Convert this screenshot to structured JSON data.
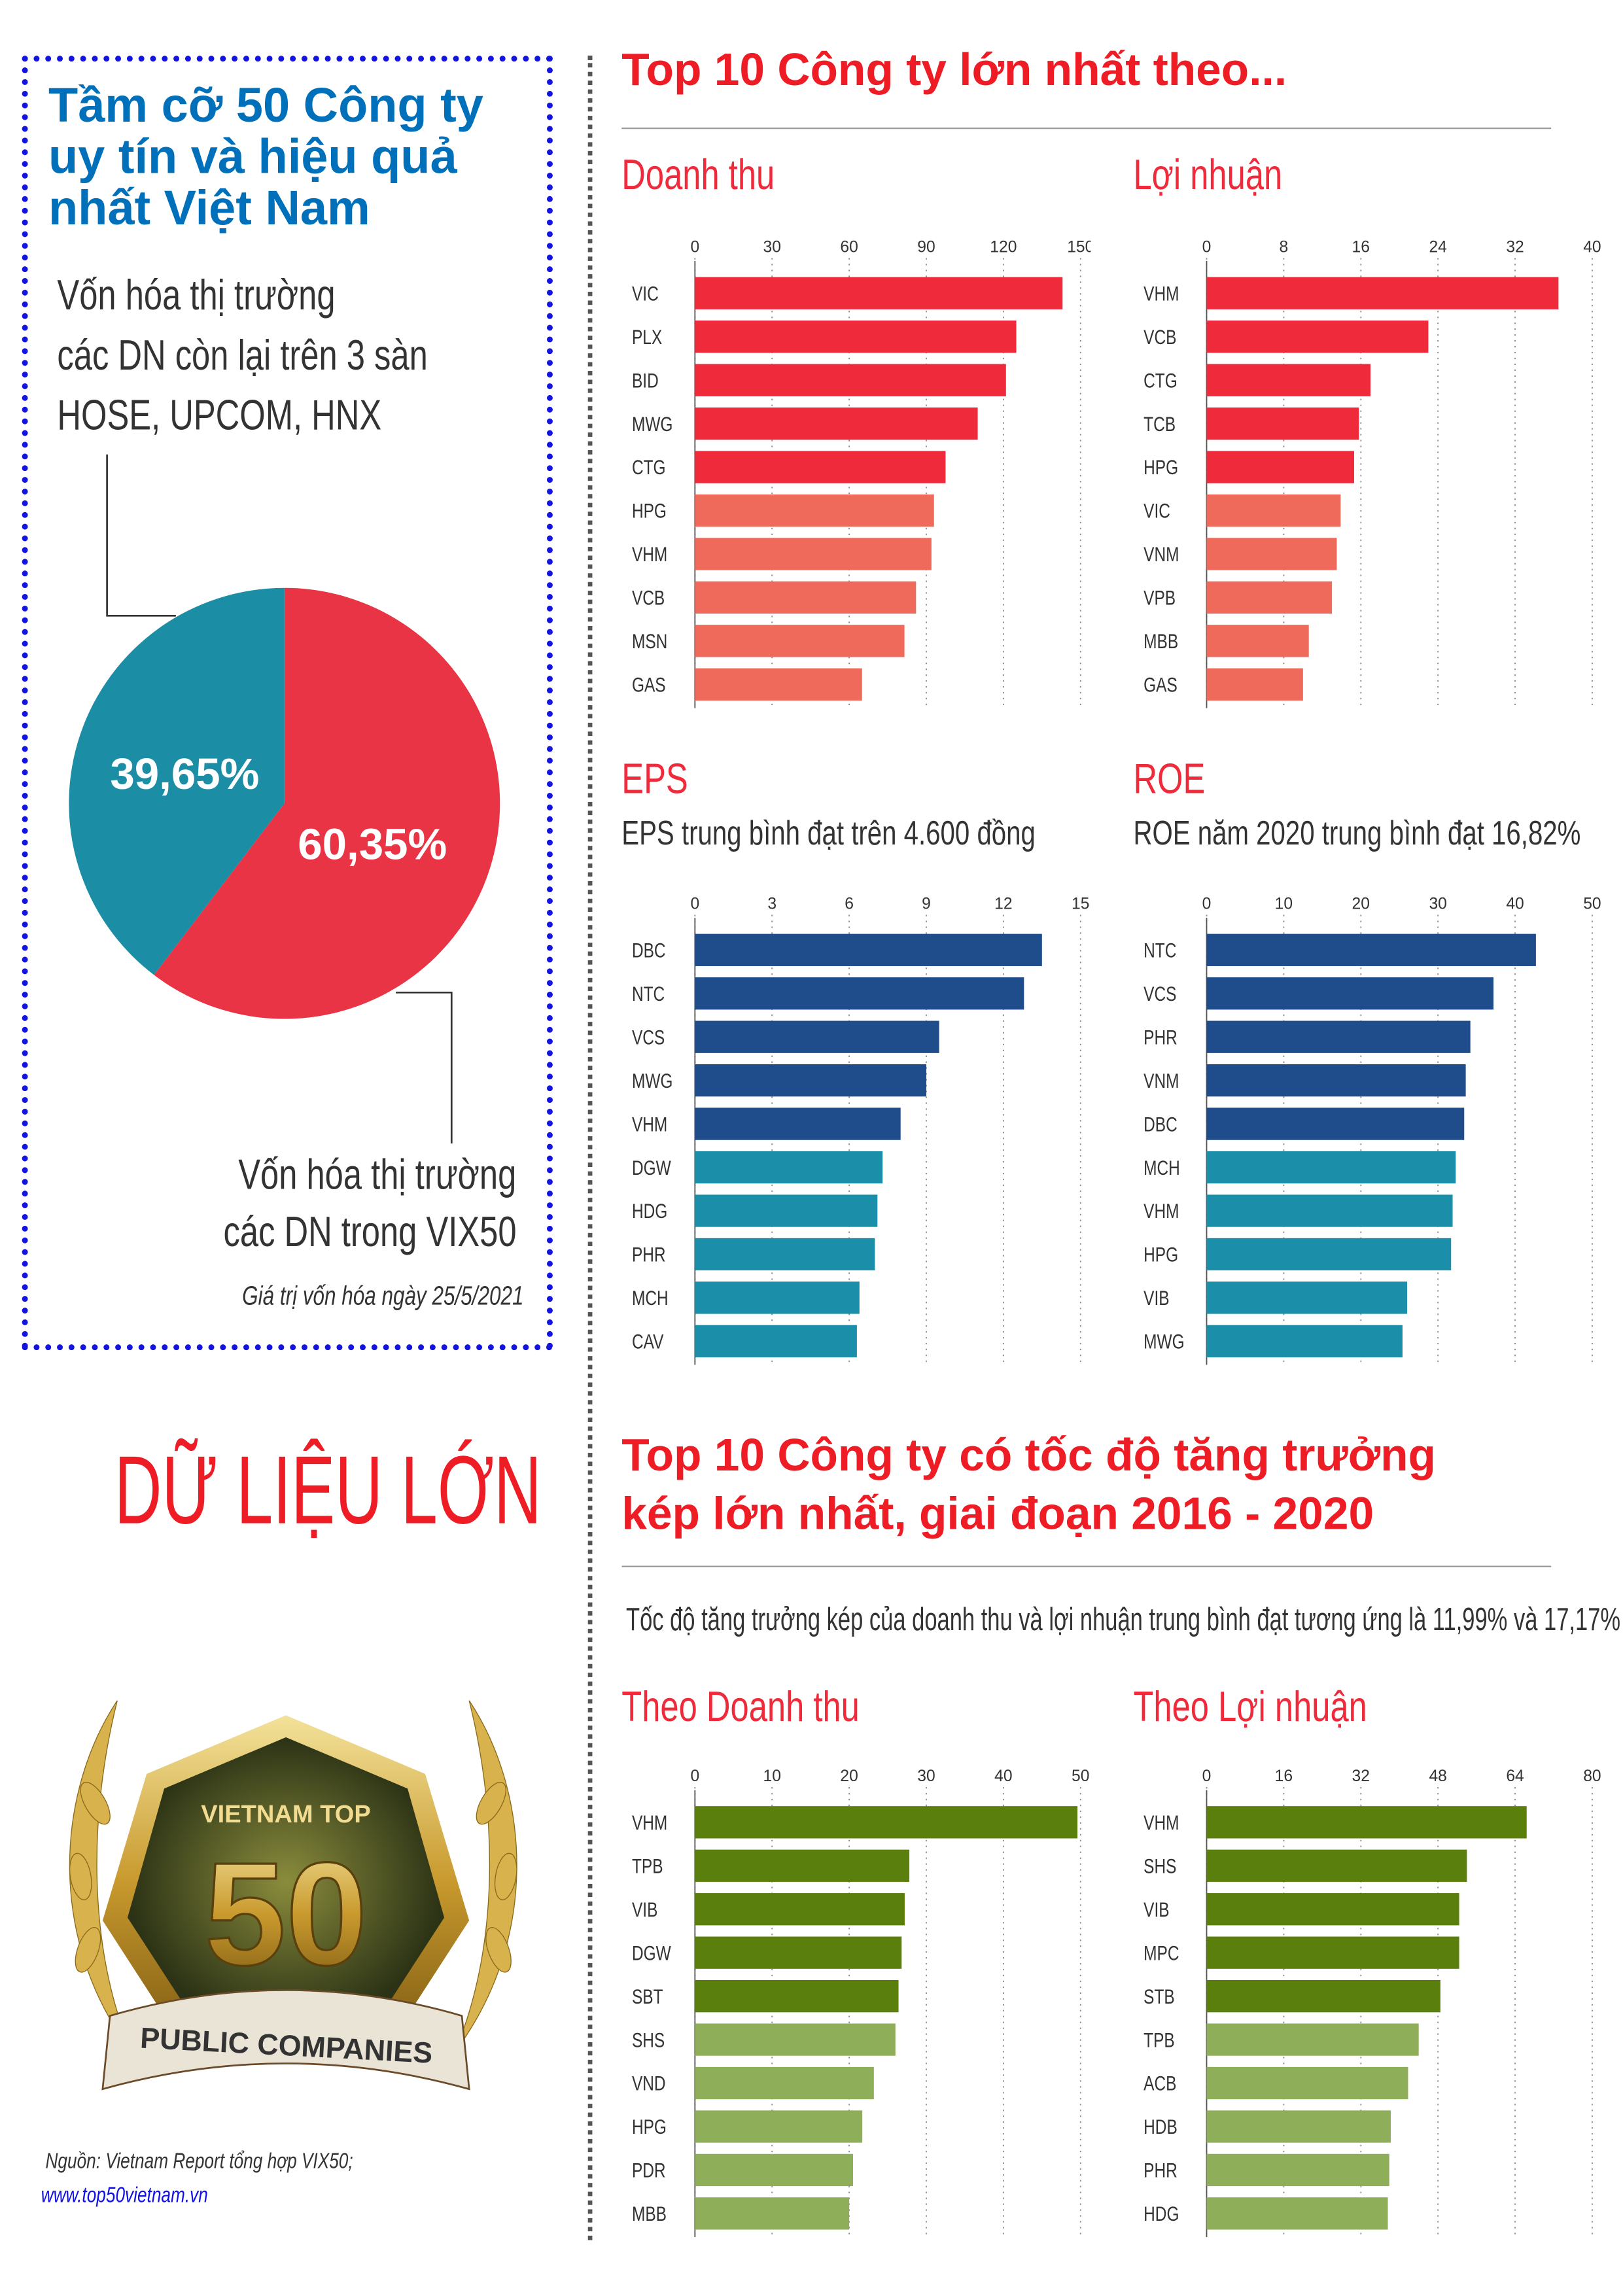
{
  "left": {
    "title_lines": [
      "Tầm cỡ 50 Công ty",
      "uy tín và hiệu quả",
      "nhất Việt Nam"
    ],
    "other_label_lines": [
      "Vốn hóa thị trường",
      "các DN còn lại trên 3 sàn",
      "HOSE, UPCOM, HNX"
    ],
    "vix_label_lines": [
      "Vốn hóa thị trường",
      "các DN trong VIX50"
    ],
    "date_note": "Giá trị vốn hóa ngày 25/5/2021",
    "big_data": "DỮ LIỆU LỚN",
    "logo": {
      "top": "VIETNAM TOP",
      "number": "50",
      "ribbon": "PUBLIC COMPANIES"
    },
    "source": "Nguồn: Vietnam Report tổng hợp VIX50;",
    "website": "www.top50vietnam.vn"
  },
  "pie": {
    "slices": [
      {
        "label": "60,35%",
        "value": 60.35,
        "color": "#e83444"
      },
      {
        "label": "39,65%",
        "value": 39.65,
        "color": "#1b8ea6"
      }
    ]
  },
  "section1": {
    "heading": "Top 10 Công ty lớn nhất theo..."
  },
  "section2": {
    "heading_lines": [
      "Top 10 Công ty có tốc độ tăng trưởng",
      "kép lớn nhất, giai đoạn 2016 - 2020"
    ],
    "note": "Tốc độ tăng trưởng kép của doanh thu và lợi nhuận trung bình đạt tương ứng là 11,99% và 17,17%"
  },
  "chart_data": [
    {
      "type": "bar",
      "title": "Doanh thu",
      "subtitle": "",
      "xlim": [
        0,
        150
      ],
      "ticks": [
        0,
        30,
        60,
        90,
        120,
        150
      ],
      "categories": [
        "VIC",
        "PLX",
        "BID",
        "MWG",
        "CTG",
        "HPG",
        "VHM",
        "VCB",
        "MSN",
        "GAS"
      ],
      "values": [
        143,
        125,
        121,
        110,
        97.5,
        93,
        92,
        86,
        81.5,
        65
      ],
      "colors": [
        "#ee2a3b",
        "#ef6a5a"
      ]
    },
    {
      "type": "bar",
      "title": "Lợi nhuận",
      "subtitle": "",
      "xlim": [
        0,
        40
      ],
      "ticks": [
        0,
        8,
        16,
        24,
        32,
        40
      ],
      "categories": [
        "VHM",
        "VCB",
        "CTG",
        "TCB",
        "HPG",
        "VIC",
        "VNM",
        "VPB",
        "MBB",
        "GAS"
      ],
      "values": [
        36.5,
        23,
        17,
        15.8,
        15.3,
        13.9,
        13.5,
        13,
        10.6,
        10
      ],
      "colors": [
        "#ee2a3b",
        "#ef6a5a"
      ]
    },
    {
      "type": "bar",
      "title": "EPS",
      "subtitle": "EPS trung bình đạt trên 4.600 đồng",
      "xlim": [
        0,
        15
      ],
      "ticks": [
        0,
        3,
        6,
        9,
        12,
        15
      ],
      "categories": [
        "DBC",
        "NTC",
        "VCS",
        "MWG",
        "VHM",
        "DGW",
        "HDG",
        "PHR",
        "MCH",
        "CAV"
      ],
      "values": [
        13.5,
        12.8,
        9.5,
        9,
        8,
        7.3,
        7.1,
        7,
        6.4,
        6.3
      ],
      "colors": [
        "#1f4c8a",
        "#1b8fa9"
      ]
    },
    {
      "type": "bar",
      "title": "ROE",
      "subtitle": "ROE năm 2020 trung bình đạt 16,82%",
      "xlim": [
        0,
        50
      ],
      "ticks": [
        0,
        10,
        20,
        30,
        40,
        50
      ],
      "categories": [
        "NTC",
        "VCS",
        "PHR",
        "VNM",
        "DBC",
        "MCH",
        "VHM",
        "HPG",
        "VIB",
        "MWG"
      ],
      "values": [
        42.7,
        37.2,
        34.2,
        33.6,
        33.4,
        32.3,
        31.9,
        31.7,
        26,
        25.4
      ],
      "colors": [
        "#1f4c8a",
        "#1b8fa9"
      ]
    },
    {
      "type": "bar",
      "title": "Theo Doanh thu",
      "subtitle": "",
      "xlim": [
        0,
        50
      ],
      "ticks": [
        0,
        10,
        20,
        30,
        40,
        50
      ],
      "categories": [
        "VHM",
        "TPB",
        "VIB",
        "DGW",
        "SBT",
        "SHS",
        "VND",
        "HPG",
        "PDR",
        "MBB"
      ],
      "values": [
        49.6,
        27.8,
        27.2,
        26.8,
        26.4,
        26,
        23.2,
        21.7,
        20.5,
        20
      ],
      "colors": [
        "#5b7f0c",
        "#8fae5a"
      ]
    },
    {
      "type": "bar",
      "title": "Theo Lợi nhuận",
      "subtitle": "",
      "xlim": [
        0,
        80
      ],
      "ticks": [
        0,
        16,
        32,
        48,
        64,
        80
      ],
      "categories": [
        "VHM",
        "SHS",
        "VIB",
        "MPC",
        "STB",
        "TPB",
        "ACB",
        "HDB",
        "PHR",
        "HDG"
      ],
      "values": [
        66.4,
        54,
        52.4,
        52.4,
        48.5,
        44,
        41.8,
        38.2,
        37.9,
        37.6
      ],
      "colors": [
        "#5b7f0c",
        "#8fae5a"
      ]
    }
  ]
}
